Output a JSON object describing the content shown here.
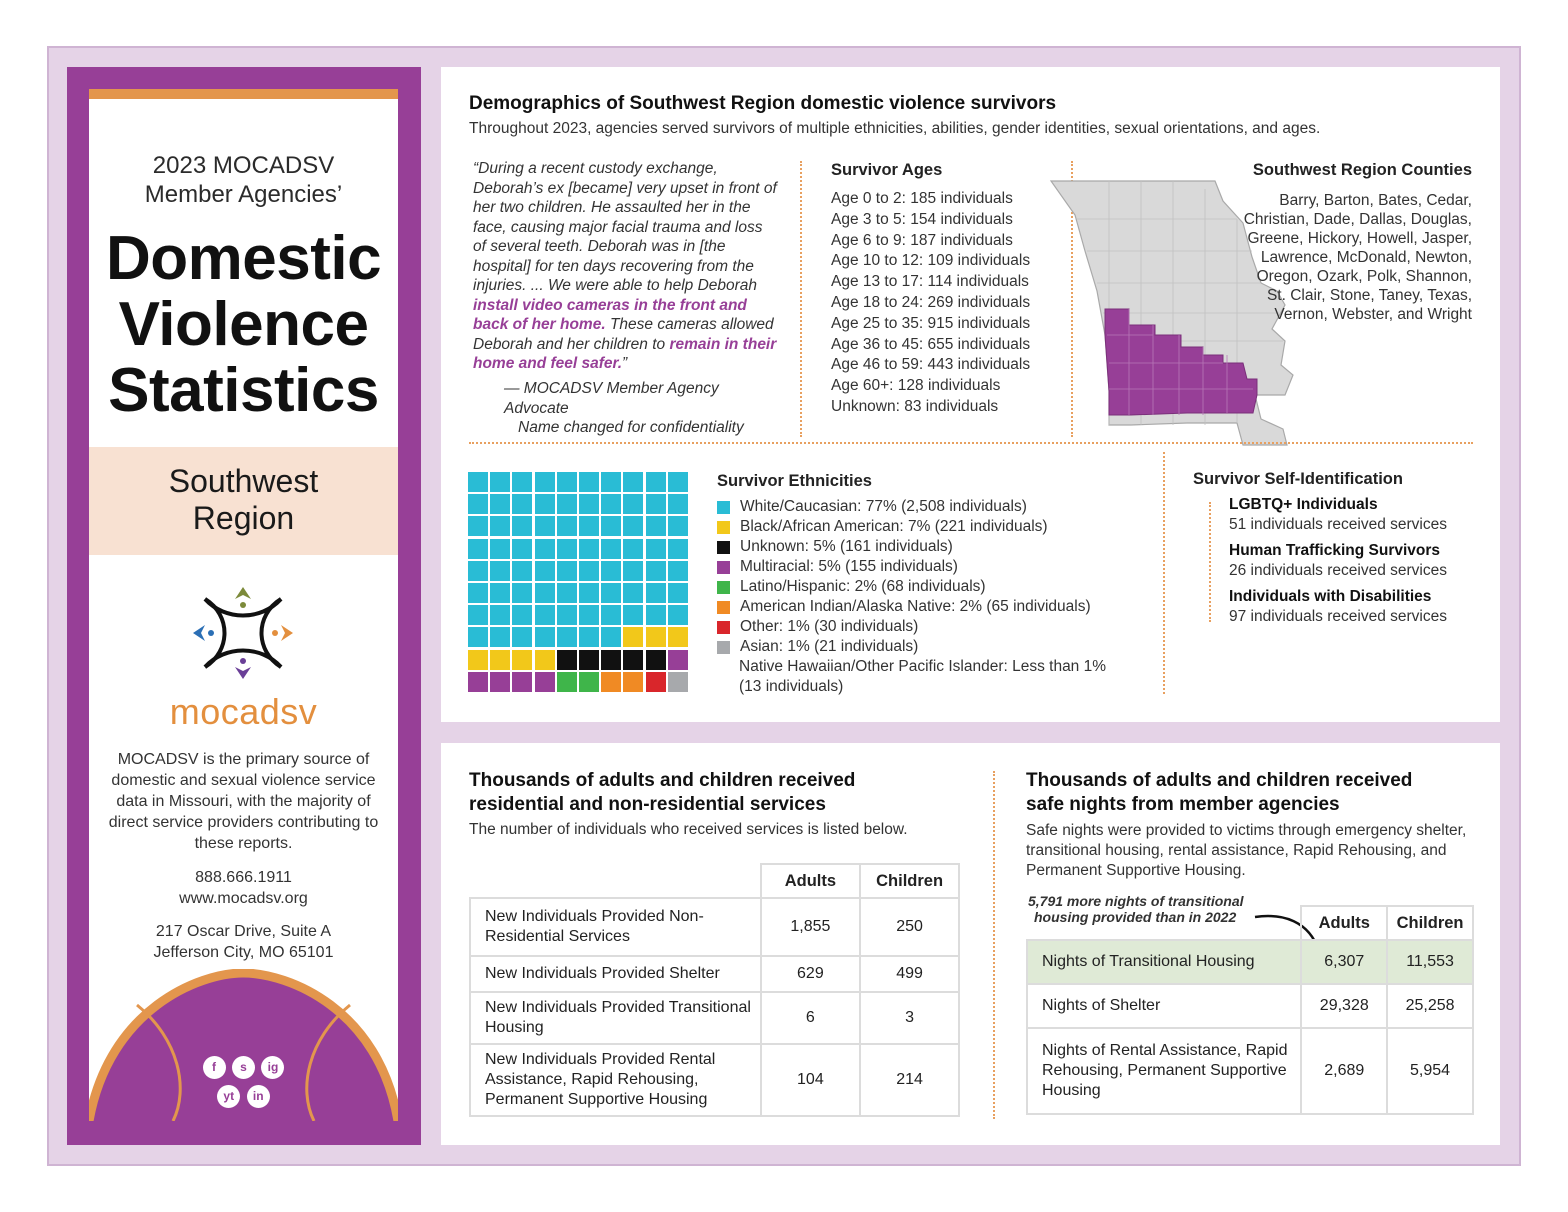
{
  "sidebar": {
    "subtitle_line1": "2023 MOCADSV",
    "subtitle_line2": "Member Agencies’",
    "title_line1": "Domestic",
    "title_line2": "Violence",
    "title_line3": "Statistics",
    "region_line1": "Southwest",
    "region_line2": "Region",
    "logo_text": "mocadsv",
    "description": "MOCADSV is the primary source of domestic and sexual violence service data in Missouri, with the majority of direct service providers contributing to these reports.",
    "phone": "888.666.1911",
    "website": "www.mocadsv.org",
    "address_line1": "217 Oscar Drive, Suite A",
    "address_line2": "Jefferson City, MO 65101",
    "social": [
      "f",
      "s",
      "ig",
      "yt",
      "in"
    ]
  },
  "demographics": {
    "title": "Demographics of Southwest Region domestic violence survivors",
    "subtitle": "Throughout 2023, agencies served survivors of multiple ethnicities, abilities, gender identities, sexual orientations, and ages.",
    "quote": {
      "part1": "“During a recent custody exchange, Deborah’s ex [became] very upset in front of her two children. He assaulted her in the face, causing major facial trauma and loss of several teeth. Deborah was in [the hospital] for ten days recovering from the injuries. ... We were able to help Deborah ",
      "highlight1": "install video cameras in the front and back of her home.",
      "part2": " These cameras allowed Deborah and her children to ",
      "highlight2": "remain in their home and feel safer.",
      "part3": "”",
      "attribution_line1": "— MOCADSV Member Agency Advocate",
      "attribution_line2": "Name changed for confidentiality"
    },
    "ages": {
      "title": "Survivor Ages",
      "items": [
        "Age 0 to 2: 185 individuals",
        "Age 3 to 5: 154 individuals",
        "Age 6 to 9: 187 individuals",
        "Age 10 to 12: 109 individuals",
        "Age 13 to 17: 114 individuals",
        "Age 18 to 24: 269 individuals",
        "Age 25 to 35: 915 individuals",
        "Age 36 to 45: 655 individuals",
        "Age 46 to 59: 443 individuals",
        "Age 60+: 128 individuals",
        "Unknown: 83 individuals"
      ]
    },
    "counties": {
      "title": "Southwest Region Counties",
      "list": "Barry, Barton, Bates, Cedar, Christian, Dade, Dallas, Douglas, Greene, Hickory, Howell, Jasper, Lawrence, McDonald, Newton, Oregon, Ozark, Polk, Shannon, St. Clair, Stone, Taney, Texas, Vernon, Webster, and Wright"
    },
    "ethnicities": {
      "title": "Survivor Ethnicities",
      "items": [
        {
          "label": "White/Caucasian: 77% (2,508 individuals)",
          "color": "#29bcd5",
          "squares": 77
        },
        {
          "label": "Black/African American: 7% (221 individuals)",
          "color": "#f2c81a",
          "squares": 7
        },
        {
          "label": "Unknown: 5% (161 individuals)",
          "color": "#111111",
          "squares": 5
        },
        {
          "label": "Multiracial: 5% (155 individuals)",
          "color": "#973f97",
          "squares": 5
        },
        {
          "label": "Latino/Hispanic: 2% (68 individuals)",
          "color": "#3fb54a",
          "squares": 2
        },
        {
          "label": "American Indian/Alaska Native: 2% (65 individuals)",
          "color": "#f08a24",
          "squares": 2
        },
        {
          "label": "Other: 1% (30 individuals)",
          "color": "#d9262b",
          "squares": 1
        },
        {
          "label": "Asian: 1% (21 individuals)",
          "color": "#a7a9ac",
          "squares": 1
        }
      ],
      "extra_line1": "Native Hawaiian/Other Pacific Islander: Less than 1%",
      "extra_line2": "(13 individuals)"
    },
    "self_identification": {
      "title": "Survivor Self-Identification",
      "items": [
        {
          "label": "LGBTQ+ Individuals",
          "value": "51 individuals received services"
        },
        {
          "label": "Human Trafficking Survivors",
          "value": "26 individuals received services"
        },
        {
          "label": "Individuals with Disabilities",
          "value": "97 individuals received services"
        }
      ]
    }
  },
  "services": {
    "title_line1": "Thousands of adults and children received",
    "title_line2": "residential and non-residential services",
    "subtitle": "The number of individuals who received services is listed below.",
    "col_adults": "Adults",
    "col_children": "Children",
    "rows": [
      {
        "label": "New Individuals Provided Non-Residential Services",
        "adults": "1,855",
        "children": "250"
      },
      {
        "label": "New Individuals Provided Shelter",
        "adults": "629",
        "children": "499"
      },
      {
        "label": "New Individuals Provided Transitional Housing",
        "adults": "6",
        "children": "3"
      },
      {
        "label": "New Individuals Provided Rental Assistance, Rapid Rehousing, Permanent Supportive Housing",
        "adults": "104",
        "children": "214"
      }
    ]
  },
  "safe_nights": {
    "title_line1": "Thousands of adults and children received",
    "title_line2": "safe nights from member agencies",
    "subtitle": "Safe nights were provided to victims through emergency shelter, transitional housing, rental assistance, Rapid Rehousing, and Permanent Supportive Housing.",
    "annotation_line1": "5,791 more nights of transitional",
    "annotation_line2": "housing provided than in 2022",
    "col_adults": "Adults",
    "col_children": "Children",
    "rows": [
      {
        "label": "Nights of Transitional Housing",
        "adults": "6,307",
        "children": "11,553"
      },
      {
        "label": "Nights of Shelter",
        "adults": "29,328",
        "children": "25,258"
      },
      {
        "label": "Nights of Rental Assistance, Rapid Rehousing, Permanent Supportive Housing",
        "adults": "2,689",
        "children": "5,954"
      }
    ]
  },
  "colors": {
    "purple": "#973f97",
    "orange": "#e3964d",
    "peach": "#f8e1d2",
    "lavender": "#e5d3e7",
    "green_row": "#dfead6"
  }
}
